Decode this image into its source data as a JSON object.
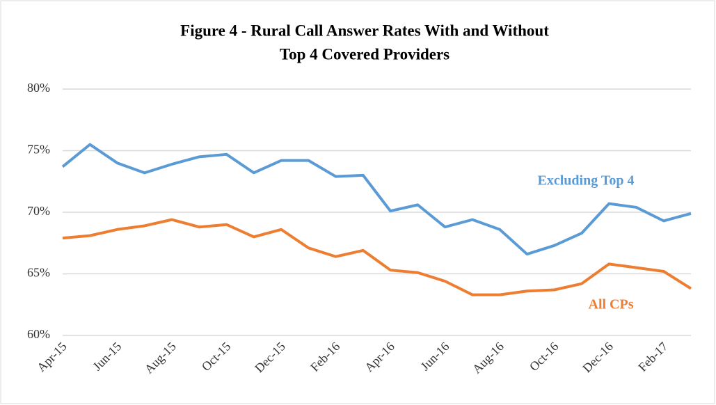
{
  "chart_data": {
    "type": "line",
    "title": [
      "Figure 4 - Rural Call Answer Rates With and Without",
      "Top 4 Covered Providers"
    ],
    "categories": [
      "Apr-15",
      null,
      "Jun-15",
      null,
      "Aug-15",
      null,
      "Oct-15",
      null,
      "Dec-15",
      null,
      "Feb-16",
      null,
      "Apr-16",
      null,
      "Jun-16",
      null,
      "Aug-16",
      null,
      "Oct-16",
      null,
      "Dec-16",
      null,
      "Feb-17",
      null
    ],
    "series": [
      {
        "name": "Excluding Top 4",
        "color": "#5b9bd5",
        "values": [
          73.7,
          75.5,
          74.0,
          73.2,
          73.9,
          74.5,
          74.7,
          73.2,
          74.2,
          74.2,
          72.9,
          73.0,
          70.1,
          70.6,
          68.8,
          69.4,
          68.6,
          66.6,
          67.3,
          68.3,
          70.7,
          70.4,
          69.3,
          69.9
        ]
      },
      {
        "name": "All CPs",
        "color": "#ed7d31",
        "values": [
          67.9,
          68.1,
          68.6,
          68.9,
          69.4,
          68.8,
          69.0,
          68.0,
          68.6,
          67.1,
          66.4,
          66.9,
          65.3,
          65.1,
          64.4,
          63.3,
          63.3,
          63.6,
          63.7,
          64.2,
          65.8,
          65.5,
          65.2,
          63.8
        ]
      }
    ],
    "ylim": [
      60,
      80
    ],
    "yticks": [
      {
        "value": 60,
        "label": "60%"
      },
      {
        "value": 65,
        "label": "65%"
      },
      {
        "value": 70,
        "label": "70%"
      },
      {
        "value": 75,
        "label": "75%"
      },
      {
        "value": 80,
        "label": "80%"
      }
    ],
    "grid": true
  }
}
